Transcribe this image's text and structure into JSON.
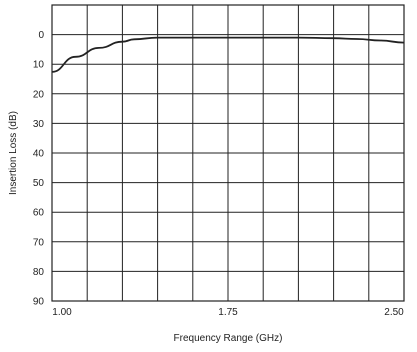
{
  "chart_data": {
    "type": "line",
    "title": "",
    "xlabel": "Frequency Range (GHz)",
    "ylabel": "Insertion Loss (dB)",
    "xlim": [
      1.0,
      2.5
    ],
    "ylim": [
      -10,
      90
    ],
    "y_inverted": true,
    "x_tick_labels": [
      {
        "value": 1.0,
        "label": "1.00"
      },
      {
        "value": 1.75,
        "label": "1.75"
      },
      {
        "value": 2.5,
        "label": "2.50"
      }
    ],
    "y_tick_labels": [
      {
        "value": 0,
        "label": "0"
      },
      {
        "value": 10,
        "label": "10"
      },
      {
        "value": 20,
        "label": "20"
      },
      {
        "value": 30,
        "label": "30"
      },
      {
        "value": 40,
        "label": "40"
      },
      {
        "value": 50,
        "label": "50"
      },
      {
        "value": 60,
        "label": "60"
      },
      {
        "value": 70,
        "label": "70"
      },
      {
        "value": 80,
        "label": "80"
      },
      {
        "value": 90,
        "label": "90"
      }
    ],
    "grid": true,
    "series": [
      {
        "color": "#222222",
        "x": [
          1.0,
          1.1,
          1.2,
          1.3,
          1.35,
          1.45,
          1.6,
          1.75,
          1.9,
          2.05,
          2.2,
          2.3,
          2.4,
          2.5
        ],
        "y": [
          12.6,
          7.5,
          4.5,
          2.4,
          1.6,
          1.0,
          1.0,
          1.0,
          1.0,
          1.0,
          1.2,
          1.5,
          2.0,
          2.7
        ]
      }
    ]
  }
}
